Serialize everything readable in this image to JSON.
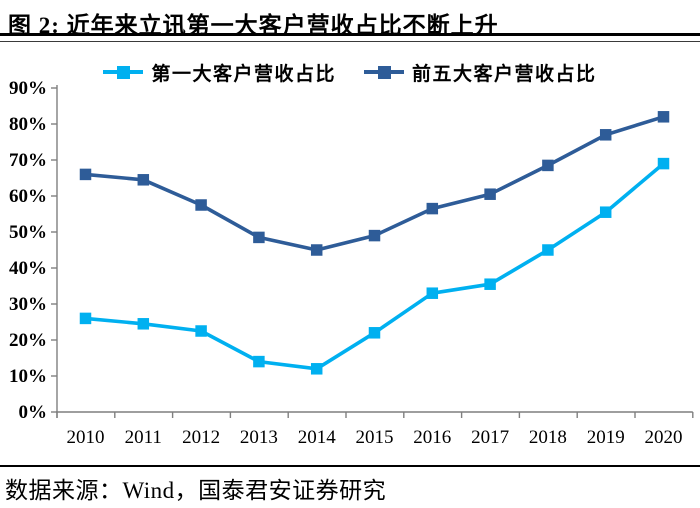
{
  "title": "图 2:  近年来立讯第一大客户营收占比不断上升",
  "source": "数据来源：Wind，国泰君安证券研究",
  "colors": {
    "series1": "#00B0F0",
    "series2": "#2E5C98",
    "axis": "#7F7F7F",
    "text": "#000000",
    "rule": "#000000"
  },
  "chart_data": {
    "type": "line",
    "x_labels": [
      "2010",
      "2011",
      "2012",
      "2013",
      "2014",
      "2015",
      "2016",
      "2017",
      "2018",
      "2019",
      "2020"
    ],
    "y_labels": [
      "0%",
      "10%",
      "20%",
      "30%",
      "40%",
      "50%",
      "60%",
      "70%",
      "80%",
      "90%"
    ],
    "ylim": [
      0,
      90
    ],
    "ytick_step": 10,
    "grid": false,
    "legend_position": "top",
    "series": [
      {
        "name": "第一大客户营收占比",
        "color": "#00B0F0",
        "marker": "square",
        "values": [
          26,
          24.5,
          22.5,
          14,
          12,
          22,
          33,
          35.5,
          45,
          55.5,
          69
        ]
      },
      {
        "name": "前五大客户营收占比",
        "color": "#2E5C98",
        "marker": "square",
        "values": [
          66,
          64.5,
          57.5,
          48.5,
          45,
          49,
          56.5,
          60.5,
          68.5,
          77,
          82
        ]
      }
    ]
  }
}
